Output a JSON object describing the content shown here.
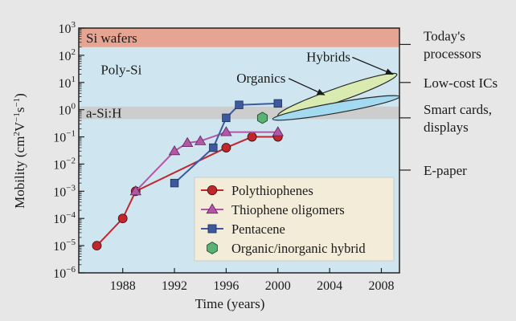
{
  "chart_data": {
    "type": "scatter",
    "title": "",
    "xlabel": "Time  (years)",
    "ylabel_text": "Mobility  (cm",
    "ylabel_sup1": "2",
    "ylabel_mid": "V",
    "ylabel_sup2": "−1",
    "ylabel_mid2": "s",
    "ylabel_sup3": "−1",
    "ylabel_end": ")",
    "xlim": [
      1984.6,
      2009.4
    ],
    "ylim_log10": [
      -6,
      3
    ],
    "y_scale": "log",
    "x_ticks": [
      1988,
      1992,
      1996,
      2000,
      2004,
      2008
    ],
    "y_tick_exponents": [
      3,
      2,
      1,
      0,
      -1,
      -2,
      -3,
      -4,
      -5,
      -6
    ],
    "y_tick_base": "10",
    "plot_background": "#cfe6f1",
    "bands": [
      {
        "label": "Si wafers",
        "ymin": 200,
        "ymax": 1000,
        "color": "#e6a593"
      },
      {
        "label": "a-Si:H",
        "ymin": 0.45,
        "ymax": 1.3,
        "color": "#cdcdcd"
      }
    ],
    "region_labels": [
      {
        "text": "Poly-Si",
        "x": 1986.3,
        "y": 20
      }
    ],
    "right_labels": [
      {
        "lines": [
          "Today's",
          "processors"
        ],
        "y": 250
      },
      {
        "lines": [
          "Low-cost ICs"
        ],
        "y": 10
      },
      {
        "lines": [
          "Smart cards,",
          "displays"
        ],
        "y": 0.5
      },
      {
        "lines": [
          "E-paper"
        ],
        "y": 0.006
      }
    ],
    "ellipses": [
      {
        "label": "Hybrids",
        "x_start": 2000,
        "y_start": 0.6,
        "x_end": 2009.2,
        "y_end": 20,
        "minor_decades": 0.5,
        "color": "#d9ebb0"
      },
      {
        "label": "Organics",
        "x_start": 1999.6,
        "y_start": 0.45,
        "x_end": 2009.4,
        "y_end": 3,
        "minor_decades": 0.38,
        "color": "#a3daef"
      }
    ],
    "annotations": [
      {
        "text": "Hybrids",
        "x": 2002.2,
        "y": 60,
        "arrow_to_x": 2008.9,
        "arrow_to_y": 20
      },
      {
        "text": "Organics",
        "x": 1996.8,
        "y": 10,
        "arrow_to_x": 2003.6,
        "arrow_to_y": 3.5
      }
    ],
    "series": [
      {
        "name": "Polythiophenes",
        "marker": "circle",
        "color": "#c0272d",
        "x": [
          1986,
          1988,
          1989,
          1996,
          1998,
          2000
        ],
        "y": [
          1e-05,
          0.0001,
          0.001,
          0.04,
          0.1,
          0.1
        ]
      },
      {
        "name": "Thiophene oligomers",
        "marker": "triangle",
        "color": "#b256a6",
        "x": [
          1989,
          1992,
          1993,
          1994,
          1996,
          2000
        ],
        "y": [
          0.001,
          0.03,
          0.06,
          0.07,
          0.15,
          0.15
        ]
      },
      {
        "name": "Pentacene",
        "marker": "square",
        "color": "#3d5a9e",
        "x": [
          1992,
          1995,
          1996,
          1997,
          2000
        ],
        "y": [
          0.002,
          0.04,
          0.5,
          1.5,
          1.7
        ]
      },
      {
        "name": "Organic/inorganic hybrid",
        "marker": "hexagon",
        "color": "#5ab373",
        "x": [
          1998.8
        ],
        "y": [
          0.5
        ]
      }
    ],
    "legend": {
      "position": "bottom-right",
      "background": "#f3ecd9"
    }
  }
}
